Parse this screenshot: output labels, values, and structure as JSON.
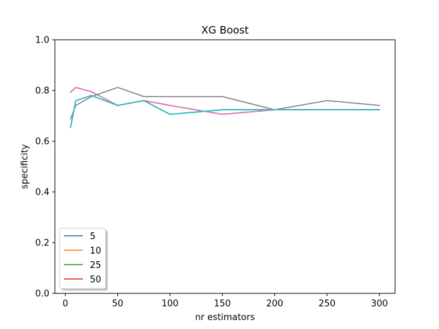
{
  "chart_data": {
    "type": "line",
    "title": "XG Boost",
    "xlabel": "nr estimators",
    "ylabel": "specificity",
    "xlim": [
      -10,
      315
    ],
    "ylim": [
      0,
      1.0
    ],
    "xticks": [
      0,
      50,
      100,
      150,
      200,
      250,
      300
    ],
    "yticks": [
      0.0,
      0.2,
      0.4,
      0.6,
      0.8,
      1.0
    ],
    "ytick_labels": [
      "0.0",
      "0.2",
      "0.4",
      "0.6",
      "0.8",
      "1.0"
    ],
    "grid": false,
    "legend_location": "lower-left",
    "x": [
      5,
      10,
      25,
      50,
      75,
      100,
      150,
      200,
      250,
      300
    ],
    "series": [
      {
        "name": "5",
        "color": "#1f77b4",
        "in_legend": true,
        "values": [
          0.655,
          0.76,
          0.78,
          0.741,
          0.76,
          0.706,
          0.724,
          0.724,
          0.724,
          0.724
        ]
      },
      {
        "name": "10",
        "color": "#ff7f0e",
        "in_legend": true,
        "values": [
          0.655,
          0.76,
          0.78,
          0.741,
          0.76,
          0.706,
          0.724,
          0.724,
          0.724,
          0.724
        ]
      },
      {
        "name": "25",
        "color": "#2ca02c",
        "in_legend": true,
        "values": [
          0.655,
          0.76,
          0.78,
          0.741,
          0.76,
          0.706,
          0.724,
          0.724,
          0.724,
          0.724
        ]
      },
      {
        "name": "50",
        "color": "#d62728",
        "in_legend": true,
        "values": [
          0.793,
          0.812,
          0.795,
          0.741,
          0.76,
          0.741,
          0.706,
          0.724,
          0.724,
          0.724
        ]
      },
      {
        "name": "",
        "color": "#9467bd",
        "in_legend": false,
        "values": [
          0.793,
          0.812,
          0.795,
          0.741,
          0.76,
          0.741,
          0.706,
          0.724,
          0.724,
          0.724
        ]
      },
      {
        "name": "",
        "color": "#8c564b",
        "in_legend": false,
        "values": [
          0.793,
          0.812,
          0.795,
          0.741,
          0.76,
          0.741,
          0.706,
          0.724,
          0.724,
          0.724
        ]
      },
      {
        "name": "",
        "color": "#e377c2",
        "in_legend": false,
        "values": [
          0.793,
          0.812,
          0.795,
          0.741,
          0.76,
          0.741,
          0.706,
          0.724,
          0.724,
          0.724
        ]
      },
      {
        "name": "",
        "color": "#7f7f7f",
        "in_legend": false,
        "values": [
          0.688,
          0.741,
          0.776,
          0.812,
          0.776,
          0.776,
          0.776,
          0.724,
          0.76,
          0.741
        ]
      },
      {
        "name": "",
        "color": "#bcbd22",
        "in_legend": false,
        "values": [
          0.655,
          0.76,
          0.78,
          0.741,
          0.76,
          0.706,
          0.724,
          0.724,
          0.724,
          0.724
        ]
      },
      {
        "name": "",
        "color": "#17becf",
        "in_legend": false,
        "values": [
          0.655,
          0.76,
          0.78,
          0.741,
          0.76,
          0.706,
          0.724,
          0.724,
          0.724,
          0.724
        ]
      }
    ]
  }
}
